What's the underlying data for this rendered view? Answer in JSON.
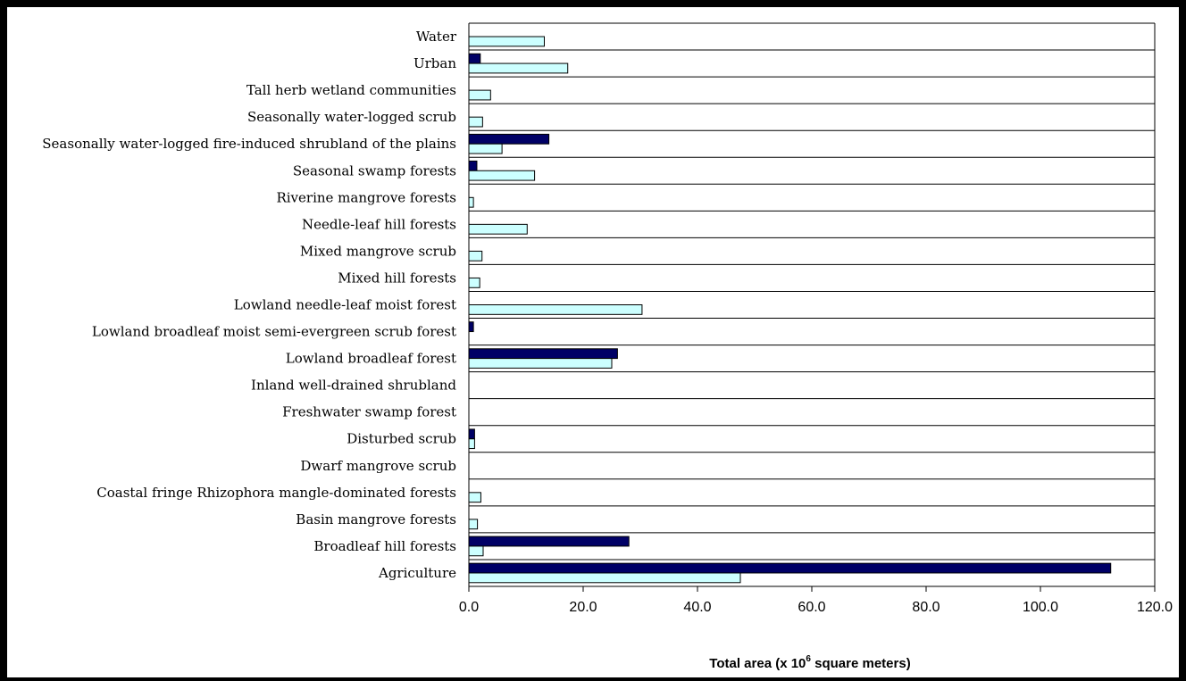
{
  "chart_data": {
    "type": "bar",
    "orientation": "horizontal",
    "title": "",
    "xlabel": "Total area (x 10",
    "xlabel_sup": "6",
    "xlabel_suffix": " square meters)",
    "ylabel": "",
    "xlim": [
      0,
      120
    ],
    "xticks": [
      "0.0",
      "20.0",
      "40.0",
      "60.0",
      "80.0",
      "100.0",
      "120.0"
    ],
    "grid": "horizontal category separators",
    "legend": "none",
    "categories": [
      "Water",
      "Urban",
      "Tall herb wetland communities",
      "Seasonally water-logged scrub",
      "Seasonally water-logged fire-induced shrubland of the plains",
      "Seasonal swamp forests",
      "Riverine mangrove forests",
      "Needle-leaf hill forests",
      "Mixed mangrove scrub",
      "Mixed hill forests",
      "Lowland needle-leaf moist forest",
      "Lowland broadleaf moist semi-evergreen scrub forest",
      "Lowland broadleaf forest",
      "Inland well-drained shrubland",
      "Freshwater swamp forest",
      "Disturbed scrub",
      "Dwarf mangrove scrub",
      "Coastal fringe Rhizophora mangle-dominated forests",
      "Basin mangrove forests",
      "Broadleaf hill forests",
      "Agriculture"
    ],
    "series": [
      {
        "color": "#000066",
        "values": [
          0,
          2.0,
          0,
          0,
          14.0,
          1.4,
          0,
          0,
          0,
          0,
          0,
          0.8,
          26.0,
          0,
          0,
          1.0,
          0,
          0,
          0,
          28.0,
          112.3
        ]
      },
      {
        "color": "#CCFFFF",
        "values": [
          13.2,
          17.3,
          3.8,
          2.4,
          5.8,
          11.5,
          0.8,
          10.2,
          2.3,
          1.9,
          30.3,
          0,
          25.0,
          0,
          0,
          1.0,
          0,
          2.1,
          1.5,
          2.5,
          47.5
        ]
      }
    ]
  }
}
